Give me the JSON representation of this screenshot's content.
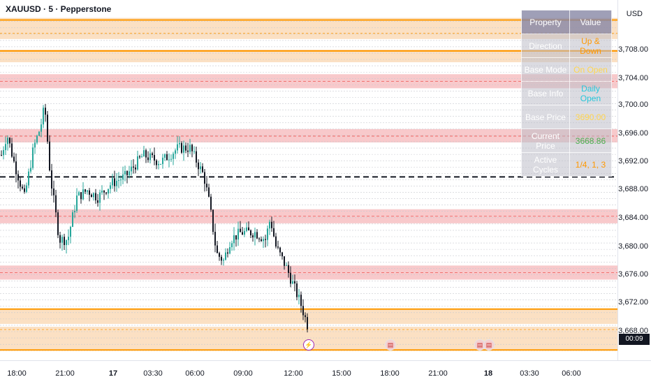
{
  "header": {
    "symbol_title": "XAUUSD · 5 · Pepperstone"
  },
  "price_scale": {
    "currency": "USD",
    "labels": [
      "3,708.00",
      "3,704.00",
      "3,700.00",
      "3,696.00",
      "3,692.00",
      "3,688.00",
      "3,684.00",
      "3,680.00",
      "3,676.00",
      "3,672.00",
      "3,668.00"
    ],
    "countdown": "00:09"
  },
  "time_axis": {
    "labels": [
      {
        "text": "18:00",
        "bold": false
      },
      {
        "text": "21:00",
        "bold": false
      },
      {
        "text": "17",
        "bold": true
      },
      {
        "text": "03:30",
        "bold": false
      },
      {
        "text": "06:00",
        "bold": false
      },
      {
        "text": "09:00",
        "bold": false
      },
      {
        "text": "12:00",
        "bold": false
      },
      {
        "text": "15:00",
        "bold": false
      },
      {
        "text": "18:00",
        "bold": false
      },
      {
        "text": "21:00",
        "bold": false
      },
      {
        "text": "18",
        "bold": true
      },
      {
        "text": "03:30",
        "bold": false
      },
      {
        "text": "06:00",
        "bold": false
      }
    ]
  },
  "info_table": {
    "header": {
      "property": "Property",
      "value": "Value"
    },
    "rows": [
      {
        "property": "Direction",
        "value": "Up & Down",
        "color": "#ff9800"
      },
      {
        "property": "Base Mode",
        "value": "On Open",
        "color": "#ffd54f"
      },
      {
        "property": "Base Info",
        "value": "Daily Open",
        "color": "#26c6da"
      },
      {
        "property": "Base Price",
        "value": "3690.00",
        "color": "#ffd54f"
      },
      {
        "property": "Current Price",
        "value": "3668.86",
        "color": "#4caf50"
      },
      {
        "property": "Active Cycles",
        "value": "1/4, 1, 3",
        "color": "#ff9800"
      }
    ]
  },
  "events": [
    {
      "icon": "lightning-icon",
      "glyph": "⚡"
    },
    {
      "icon": "us-flag-icon",
      "glyph": "▤"
    },
    {
      "icon": "us-flag-icon",
      "glyph": "▤"
    },
    {
      "icon": "us-flag-icon",
      "glyph": "▤"
    }
  ],
  "colors": {
    "bull_candle": "#26a69a",
    "bear_candle": "#131722",
    "red_band": "#f8c9cb",
    "orange_band": "#fbe0c3",
    "orange_line": "#ff9800",
    "red_line": "#ef5350",
    "base_line": "#131722"
  }
}
